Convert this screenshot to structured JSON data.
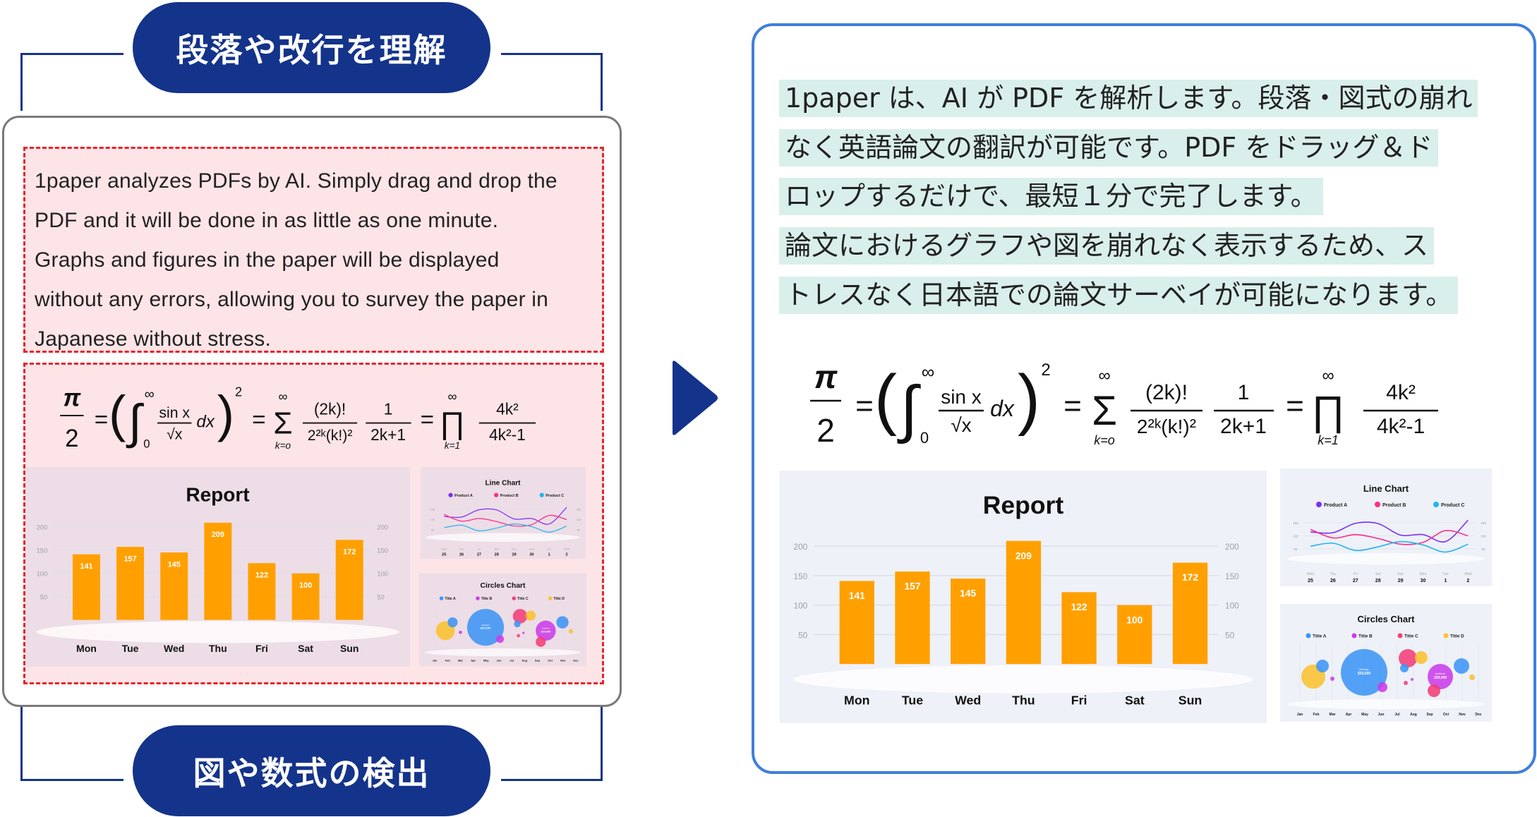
{
  "labels": {
    "top_pill": "段落や改行を理解",
    "bottom_pill": "図や数式の検出"
  },
  "english_text": [
    "1paper analyzes PDFs by AI. Simply drag and drop the",
    "PDF and it will be done in as little as one minute.",
    "Graphs and figures in the paper will be displayed",
    "without any errors, allowing you to survey the paper in",
    "Japanese without stress."
  ],
  "japanese_text": [
    "1paper は、AI が PDF を解析します。段落・図式の崩れ",
    "なく英語論文の翻訳が可能です。PDF をドラッグ＆ド",
    "ロップするだけで、最短１分で完了します。",
    "論文におけるグラフや図を崩れなく表示するため、ス",
    "トレスなく日本語での論文サーベイが可能になります。"
  ],
  "formula": [
    "π",
    "2",
    "=",
    "(",
    "∫",
    "∞",
    "0",
    "sin x",
    "√x",
    "dx",
    ")",
    "2",
    "=",
    "Σ",
    "∞",
    "k=o",
    "(2k)!",
    "2²ᵏ(k!)²",
    "1",
    "2k+1",
    "=",
    "∏",
    "∞",
    "k=1",
    "4k²",
    "4k²-1"
  ],
  "colors": {
    "brand_blue": "#14338a",
    "panel_border": "#3f7fd9",
    "highlight": "#d9efeb",
    "pink_fill": "#fde4e7",
    "dashed_red": "#e3262f",
    "bar": "#ffa000"
  },
  "arrow_icon": "triangle-right",
  "chart_data": [
    {
      "type": "bar",
      "title": "Report",
      "categories": [
        "Mon",
        "Tue",
        "Wed",
        "Thu",
        "Fri",
        "Sat",
        "Sun"
      ],
      "values": [
        141,
        157,
        145,
        209,
        122,
        100,
        172
      ],
      "yticks": [
        "200",
        "150",
        "100",
        "50"
      ],
      "ylim": [
        0,
        200
      ],
      "grid": true
    },
    {
      "type": "line",
      "title": "Line Chart",
      "legend_position": "top",
      "weekdays": [
        "Wed",
        "Thu",
        "Fri",
        "Sat",
        "Sun",
        "Mon",
        "Tue",
        "Wed"
      ],
      "dates": [
        "25",
        "26",
        "27",
        "28",
        "29",
        "30",
        "1",
        "2"
      ],
      "yticks": [
        "150",
        "100",
        "50"
      ],
      "series": [
        {
          "name": "Product A",
          "color": "#7b2ff7",
          "values": [
            115,
            112,
            148,
            147,
            103,
            105,
            78,
            160
          ]
        },
        {
          "name": "Product B",
          "color": "#ff2d87",
          "values": [
            125,
            92,
            105,
            90,
            68,
            75,
            120,
            100
          ]
        },
        {
          "name": "Product C",
          "color": "#1fb5f0",
          "values": [
            60,
            72,
            44,
            58,
            78,
            65,
            38,
            68
          ]
        }
      ]
    },
    {
      "type": "scatter",
      "title": "Circles Chart",
      "legend_position": "top",
      "months": [
        "Jan",
        "Feb",
        "Mar",
        "Apr",
        "May",
        "Jun",
        "Jul",
        "Aug",
        "Sep",
        "Oct",
        "Nov",
        "Dec"
      ],
      "series": [
        {
          "name": "Title A",
          "color": "#3d95f5"
        },
        {
          "name": "Title B",
          "color": "#c93ee8"
        },
        {
          "name": "Title C",
          "color": "#f43f78"
        },
        {
          "name": "Title D",
          "color": "#fbc22f"
        }
      ],
      "annotations": [
        {
          "label": "Earnings",
          "value": "$33,000"
        },
        {
          "label": "Audience",
          "value": "220,000"
        }
      ]
    }
  ]
}
